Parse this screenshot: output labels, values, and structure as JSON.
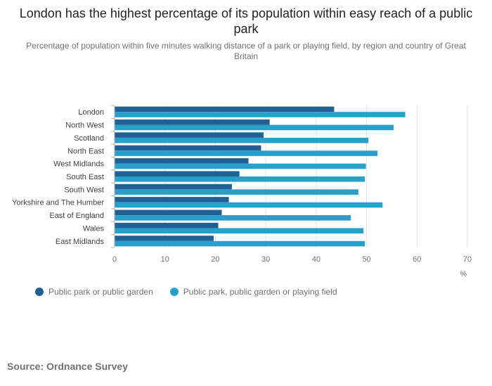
{
  "chart_data": {
    "type": "bar",
    "orientation": "horizontal",
    "title": "London has the highest percentage of its population within easy reach of a public park",
    "subtitle": "Percentage of population within five minutes walking distance of a park or playing field, by region and country of Great Britain",
    "categories": [
      "London",
      "North West",
      "Scotland",
      "North East",
      "West Midlands",
      "South East",
      "South West",
      "Yorkshire and The Humber",
      "East of England",
      "Wales",
      "East Midlands"
    ],
    "series": [
      {
        "name": "Public park or public garden",
        "color": "#206095",
        "values": [
          43.5,
          30.7,
          29.5,
          29.0,
          26.5,
          24.7,
          23.2,
          22.6,
          21.2,
          20.5,
          19.6
        ]
      },
      {
        "name": "Public park, public garden or playing field",
        "color": "#27a0cc",
        "values": [
          57.6,
          55.3,
          50.3,
          52.1,
          49.8,
          49.6,
          48.3,
          53.1,
          46.8,
          49.3,
          49.6
        ]
      }
    ],
    "xlim": [
      0,
      70
    ],
    "xticks": [
      "0",
      "10",
      "20",
      "30",
      "40",
      "50",
      "60",
      "70"
    ],
    "xlabel": "%",
    "ylabel": "",
    "grid": true,
    "legend_position": "bottom-left"
  },
  "source": "Source: Ordnance Survey"
}
